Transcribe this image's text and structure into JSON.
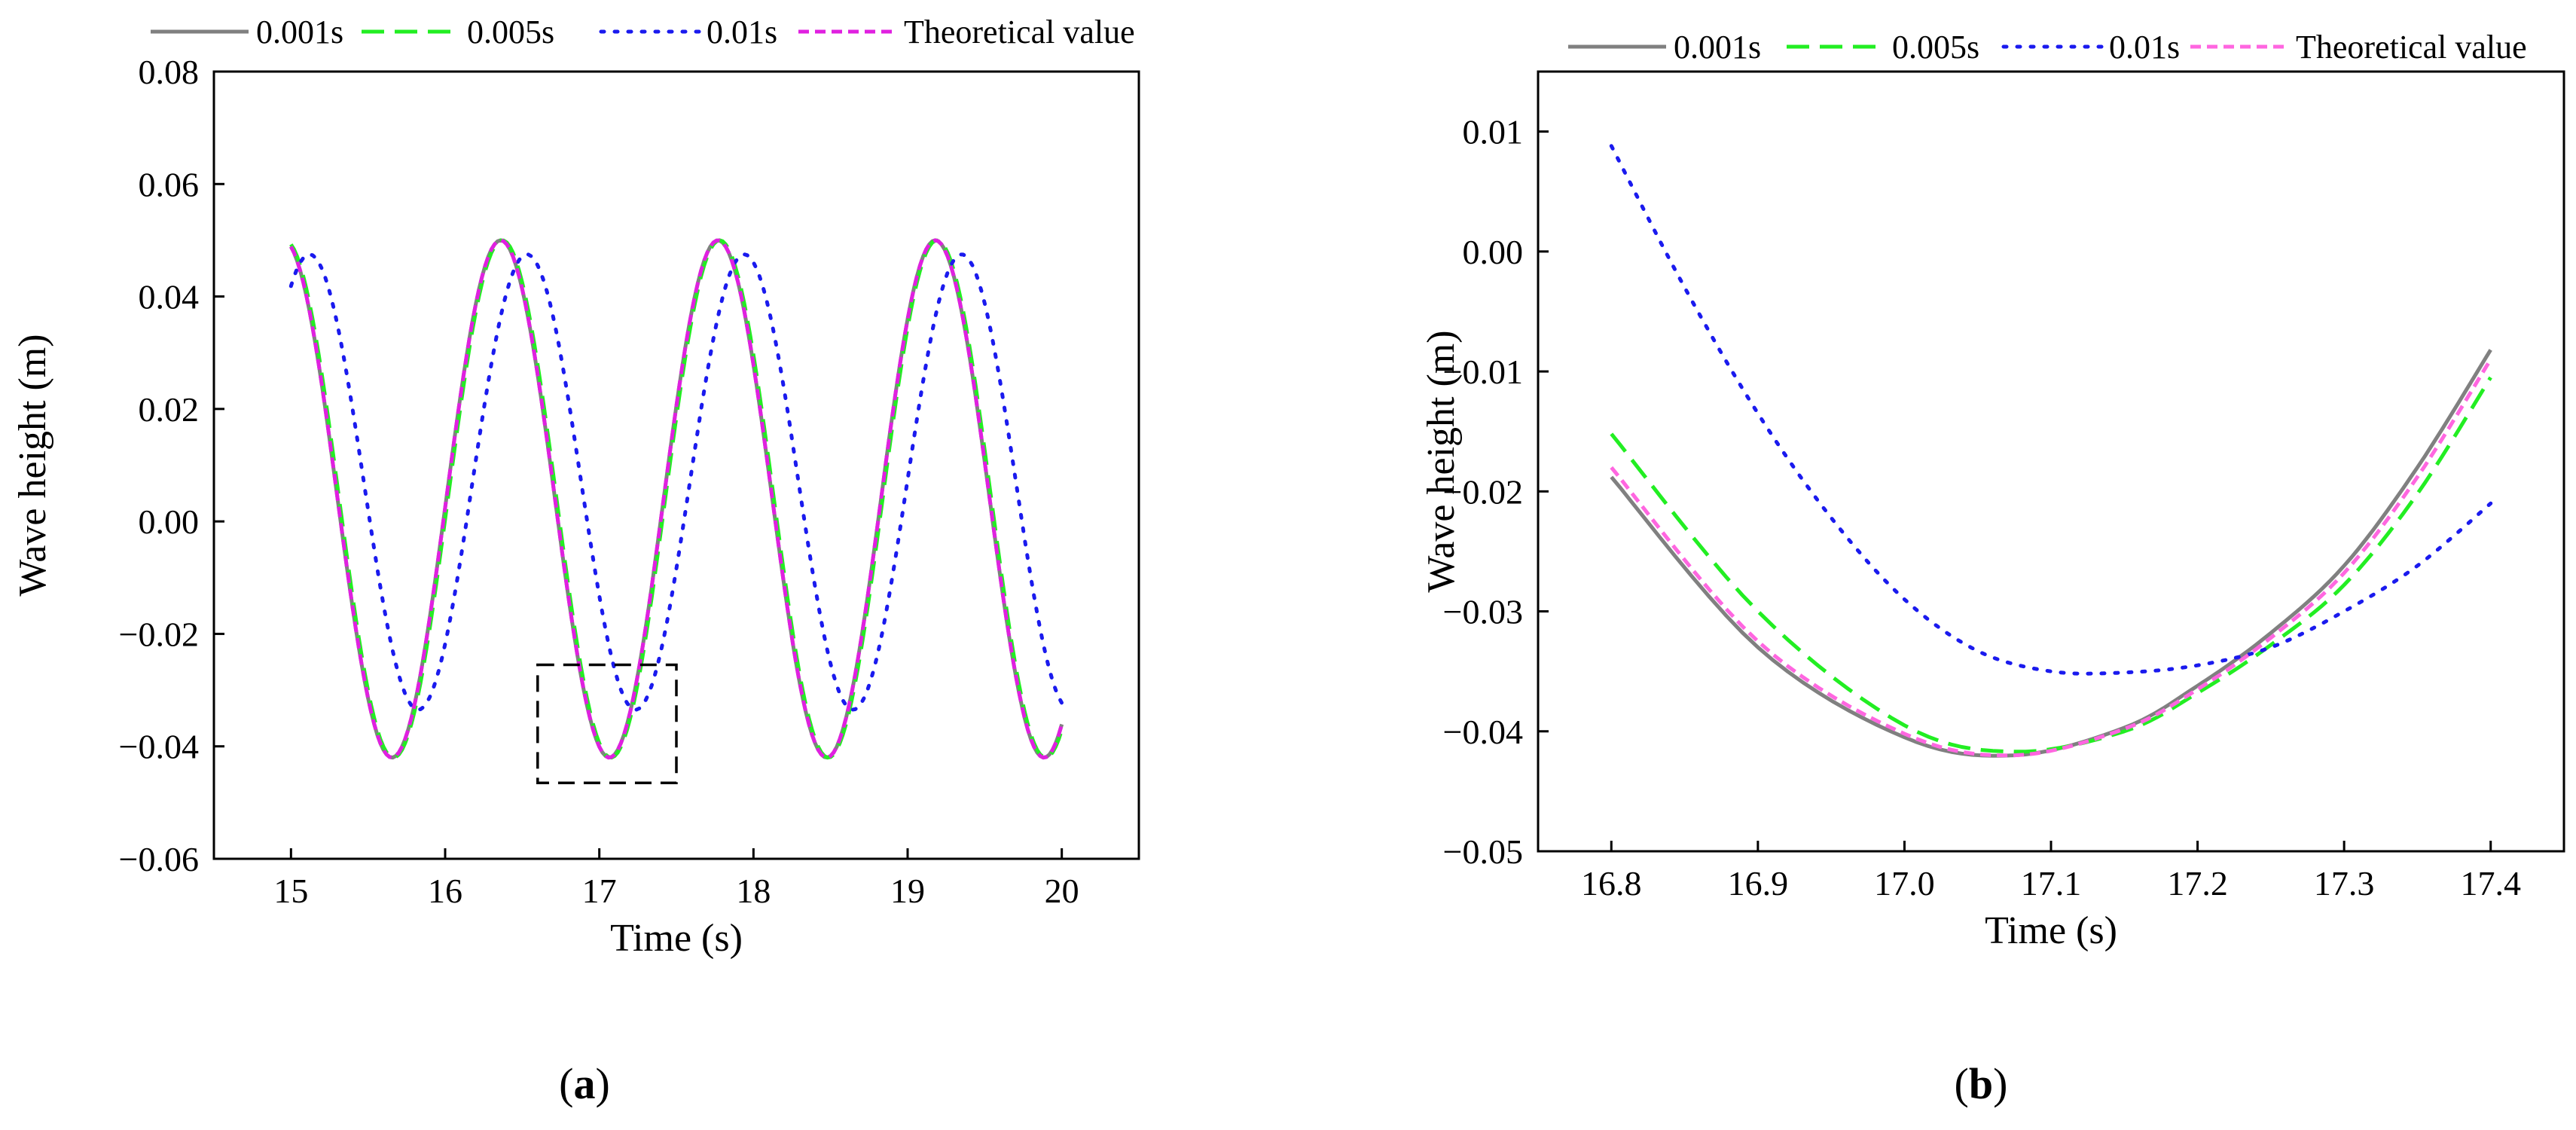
{
  "figure": {
    "caption_a": "a",
    "caption_b": "b"
  },
  "chart_data": [
    {
      "type": "line",
      "panel": "a",
      "xlabel": "Time (s)",
      "ylabel": "Wave height (m)",
      "xlim": [
        14.5,
        20.5
      ],
      "ylim": [
        -0.06,
        0.08
      ],
      "xticks": [
        15,
        16,
        17,
        18,
        19,
        20
      ],
      "xtick_labels": [
        "15",
        "16",
        "17",
        "18",
        "19",
        "20"
      ],
      "yticks": [
        -0.06,
        -0.04,
        -0.02,
        0.0,
        0.02,
        0.04,
        0.06,
        0.08
      ],
      "ytick_labels": [
        "−0.06",
        "−0.04",
        "−0.02",
        "0.00",
        "0.02",
        "0.04",
        "0.06",
        "0.08"
      ],
      "grid": false,
      "legend_position": "top, outside plot",
      "zoom_box": {
        "x": [
          16.6,
          17.5
        ],
        "y": [
          -0.0465,
          -0.0255
        ]
      },
      "series": [
        {
          "name": "0.001s",
          "color": "#808080",
          "style": "solid",
          "function": "wave",
          "amplitude": 0.046,
          "offset": 0.004,
          "period": 1.41,
          "t0": 14.95,
          "x_range": [
            15,
            20
          ],
          "samples": 251
        },
        {
          "name": "0.005s",
          "color": "#22ee22",
          "style": "dashed",
          "function": "wave",
          "amplitude": 0.046,
          "offset": 0.004,
          "period": 1.41,
          "t0": 14.96,
          "x_range": [
            15,
            20
          ],
          "samples": 251
        },
        {
          "name": "0.01s",
          "color": "#1a1aee",
          "style": "dotted",
          "function": "wave",
          "amplitude": 0.0405,
          "offset": 0.007,
          "period": 1.41,
          "t0": 15.12,
          "x_range": [
            15,
            20
          ],
          "samples": 251
        },
        {
          "name": "Theoretical value",
          "color": "#e020e0",
          "style": "short-dashed",
          "function": "wave",
          "amplitude": 0.046,
          "offset": 0.004,
          "period": 1.41,
          "t0": 14.95,
          "x_range": [
            15,
            20
          ],
          "samples": 251
        }
      ]
    },
    {
      "type": "line",
      "panel": "b",
      "xlabel": "Time (s)",
      "ylabel": "Wave height (m)",
      "xlim": [
        16.75,
        17.45
      ],
      "ylim": [
        -0.05,
        0.015
      ],
      "xticks": [
        16.8,
        16.9,
        17.0,
        17.1,
        17.2,
        17.3,
        17.4
      ],
      "xtick_labels": [
        "16.8",
        "16.9",
        "17.0",
        "17.1",
        "17.2",
        "17.3",
        "17.4"
      ],
      "yticks": [
        -0.05,
        -0.04,
        -0.03,
        -0.02,
        -0.01,
        0.0,
        0.01
      ],
      "ytick_labels": [
        "−0.05",
        "−0.04",
        "−0.03",
        "−0.02",
        "−0.01",
        "0.00",
        "0.01"
      ],
      "grid": false,
      "legend_position": "top, outside plot",
      "series": [
        {
          "name": "0.001s",
          "color": "#808080",
          "style": "solid",
          "x": [
            16.8,
            16.9,
            17.0,
            17.075,
            17.15,
            17.2,
            17.25,
            17.3,
            17.35,
            17.4
          ],
          "y": [
            -0.0188,
            -0.033,
            -0.0405,
            -0.042,
            -0.0397,
            -0.0362,
            -0.0318,
            -0.0262,
            -0.018,
            -0.0082
          ]
        },
        {
          "name": "0.005s",
          "color": "#22ee22",
          "style": "dashed",
          "x": [
            16.8,
            16.9,
            17.0,
            17.075,
            17.15,
            17.2,
            17.25,
            17.3,
            17.35,
            17.4
          ],
          "y": [
            -0.0152,
            -0.03,
            -0.0395,
            -0.0417,
            -0.04,
            -0.0368,
            -0.0328,
            -0.0278,
            -0.0202,
            -0.0105
          ]
        },
        {
          "name": "0.01s",
          "color": "#1a1aee",
          "style": "dotted",
          "x": [
            16.8,
            16.85,
            16.9,
            16.95,
            17.0,
            17.05,
            17.1,
            17.15,
            17.2,
            17.25,
            17.3,
            17.35,
            17.4
          ],
          "y": [
            0.0088,
            -0.003,
            -0.0135,
            -0.0222,
            -0.029,
            -0.0333,
            -0.035,
            -0.0351,
            -0.0345,
            -0.033,
            -0.03,
            -0.0262,
            -0.021
          ]
        },
        {
          "name": "Theoretical value",
          "color": "#ff66e0",
          "style": "short-dashed",
          "x": [
            16.8,
            16.9,
            17.0,
            17.075,
            17.15,
            17.2,
            17.25,
            17.3,
            17.35,
            17.4
          ],
          "y": [
            -0.018,
            -0.0325,
            -0.0402,
            -0.042,
            -0.0398,
            -0.0365,
            -0.0322,
            -0.0268,
            -0.0188,
            -0.009
          ]
        }
      ]
    }
  ]
}
